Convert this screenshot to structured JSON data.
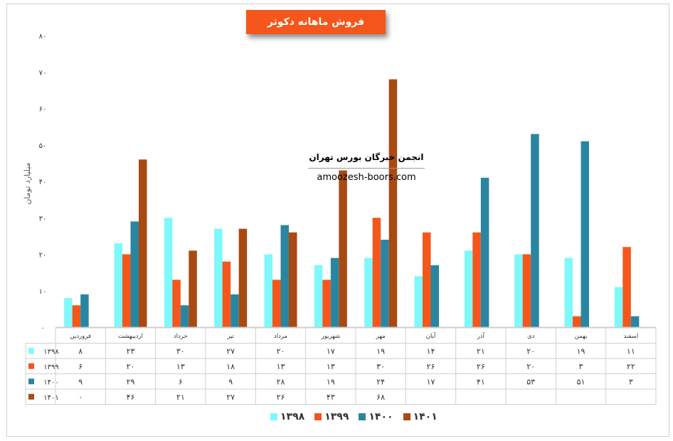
{
  "chart_data": {
    "type": "bar",
    "title": "فروش ماهانه دکوثر",
    "ylabel": "میلیارد تومان",
    "ylim": [
      0,
      80
    ],
    "yticks": [
      "۰",
      "۱۰",
      "۲۰",
      "۳۰",
      "۴۰",
      "۵۰",
      "۶۰",
      "۷۰",
      "۸۰"
    ],
    "categories": [
      "فروردین",
      "اردیبهشت",
      "خرداد",
      "تیر",
      "مرداد",
      "شهریور",
      "مهر",
      "آبان",
      "آذر",
      "دی",
      "بهمن",
      "اسفند"
    ],
    "series": [
      {
        "name": "۱۳۹۸",
        "color": "#7ff8fb",
        "values": [
          8,
          23,
          30,
          27,
          20,
          17,
          19,
          14,
          21,
          20,
          19,
          11
        ],
        "labels": [
          "۸",
          "۲۳",
          "۳۰",
          "۲۷",
          "۲۰",
          "۱۷",
          "۱۹",
          "۱۴",
          "۲۱",
          "۲۰",
          "۱۹",
          "۱۱"
        ]
      },
      {
        "name": "۱۳۹۹",
        "color": "#f4561c",
        "values": [
          6,
          20,
          13,
          18,
          13,
          13,
          30,
          26,
          26,
          20,
          3,
          22
        ],
        "labels": [
          "۶",
          "۲۰",
          "۱۳",
          "۱۸",
          "۱۳",
          "۱۳",
          "۳۰",
          "۲۶",
          "۲۶",
          "۲۰",
          "۳",
          "۲۲"
        ]
      },
      {
        "name": "۱۴۰۰",
        "color": "#2a86a0",
        "values": [
          9,
          29,
          6,
          9,
          28,
          19,
          24,
          17,
          41,
          53,
          51,
          3
        ],
        "labels": [
          "۹",
          "۲۹",
          "۶",
          "۹",
          "۲۸",
          "۱۹",
          "۲۴",
          "۱۷",
          "۴۱",
          "۵۳",
          "۵۱",
          "۳"
        ]
      },
      {
        "name": "۱۴۰۱",
        "color": "#a84a12",
        "values": [
          0,
          46,
          21,
          27,
          26,
          43,
          68,
          null,
          null,
          null,
          null,
          null
        ],
        "labels": [
          "۰",
          "۴۶",
          "۲۱",
          "۲۷",
          "۲۶",
          "۴۳",
          "۶۸",
          "",
          "",
          "",
          "",
          ""
        ]
      }
    ],
    "legend_position": "bottom",
    "grid": false,
    "data_table": true
  },
  "watermark": {
    "line1": "انجمن خبرگان بورس تهران",
    "line2": "amoozesh-boors.com"
  }
}
